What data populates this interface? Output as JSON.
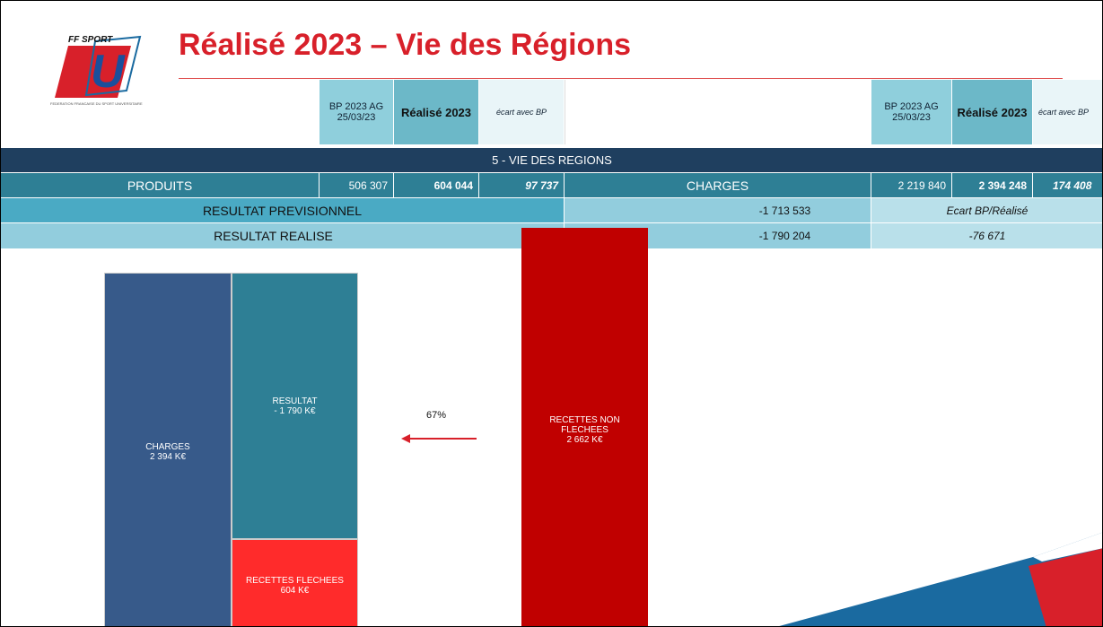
{
  "header": {
    "logo": {
      "brand": "FF SPORT",
      "letter": "U",
      "subtitle": "FEDERATION FRANCAISE DU SPORT UNIVERSITAIRE"
    },
    "title": "Réalisé 2023 – Vie des Régions"
  },
  "table": {
    "columns_left": [
      "BP 2023 AG 25/03/23",
      "Réalisé 2023",
      "écart avec BP"
    ],
    "columns_right": [
      "BP 2023 AG 25/03/23",
      "Réalisé 2023",
      "écart avec BP"
    ],
    "section": "5 - VIE DES REGIONS",
    "produits": {
      "label": "PRODUITS",
      "bp": "506 307",
      "realise": "604 044",
      "ecart": "97 737"
    },
    "charges": {
      "label": "CHARGES",
      "bp": "2 219 840",
      "realise": "2 394 248",
      "ecart": "174 408"
    },
    "resultat_previsionnel": {
      "label": "RESULTAT PREVISIONNEL",
      "value": "-1 713 533",
      "note": "Ecart BP/Réalisé"
    },
    "resultat_realise": {
      "label": "RESULTAT REALISE",
      "value": "-1 790 204",
      "ecart": "-76 671"
    }
  },
  "diagram": {
    "charges": {
      "label": "CHARGES",
      "value": "2 394 K€"
    },
    "resultat": {
      "label": "RESULTAT",
      "value": "- 1 790 K€"
    },
    "recettes_flechees": {
      "label": "RECETTES FLECHEES",
      "value": "604 K€"
    },
    "recettes_non_flechees": {
      "label": "RECETTES NON FLECHEES",
      "value": "2 662 K€"
    },
    "arrow_label": "67%"
  }
}
